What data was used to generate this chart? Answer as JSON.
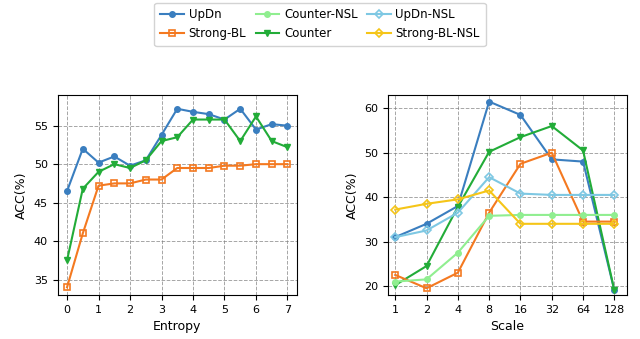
{
  "entropy_x": [
    0,
    0.5,
    1,
    1.5,
    2,
    2.5,
    3,
    3.5,
    4,
    4.5,
    5,
    5.5,
    6,
    6.5,
    7
  ],
  "entropy_UpDn": [
    46.5,
    52.0,
    50.2,
    51.0,
    49.8,
    50.5,
    53.8,
    57.2,
    56.8,
    56.5,
    55.8,
    57.2,
    54.5,
    55.2,
    55.0
  ],
  "entropy_Counter": [
    37.5,
    46.8,
    49.0,
    50.0,
    49.5,
    50.5,
    53.0,
    53.5,
    55.8,
    55.8,
    55.8,
    53.0,
    56.2,
    53.0,
    52.2
  ],
  "entropy_StrongBL": [
    34.0,
    41.0,
    47.2,
    47.5,
    47.5,
    48.0,
    48.0,
    49.5,
    49.5,
    49.5,
    49.8,
    49.8,
    50.0,
    50.0,
    50.0
  ],
  "scale_x": [
    1,
    2,
    4,
    8,
    16,
    32,
    64,
    128
  ],
  "scale_UpDn": [
    31.0,
    34.0,
    38.0,
    61.5,
    58.5,
    48.5,
    48.0,
    19.0
  ],
  "scale_Counter": [
    20.2,
    24.5,
    37.8,
    50.2,
    53.5,
    56.0,
    50.5,
    19.0
  ],
  "scale_StrongBL": [
    22.5,
    19.5,
    23.0,
    36.5,
    47.5,
    50.0,
    34.5,
    34.5
  ],
  "scale_UpDnNSL": [
    31.0,
    32.5,
    36.5,
    44.5,
    40.8,
    40.5,
    40.5,
    40.5
  ],
  "scale_CounterNSL": [
    21.0,
    21.5,
    27.5,
    35.8,
    36.0,
    36.0,
    36.0,
    36.0
  ],
  "scale_StrongBLNSL": [
    37.2,
    38.5,
    39.5,
    41.5,
    34.0,
    34.0,
    34.0,
    34.0
  ],
  "color_UpDn": "#3a7ebf",
  "color_Counter": "#22ac38",
  "color_StrongBL": "#f47920",
  "color_UpDnNSL": "#7ec8e3",
  "color_CounterNSL": "#90ee90",
  "color_StrongBLNSL": "#f5c518",
  "marker_UpDn": "o",
  "marker_Counter": "v",
  "marker_StrongBL": "s",
  "marker_UpDnNSL": "D",
  "marker_CounterNSL": "o",
  "marker_StrongBLNSL": "D",
  "ylabel": "ACC(%)",
  "xlabel_left": "Entropy",
  "xlabel_right": "Scale",
  "ylim_left": [
    33,
    59
  ],
  "ylim_right": [
    18,
    63
  ],
  "yticks_left": [
    35,
    40,
    45,
    50,
    55
  ],
  "yticks_right": [
    20,
    30,
    40,
    50,
    60
  ]
}
